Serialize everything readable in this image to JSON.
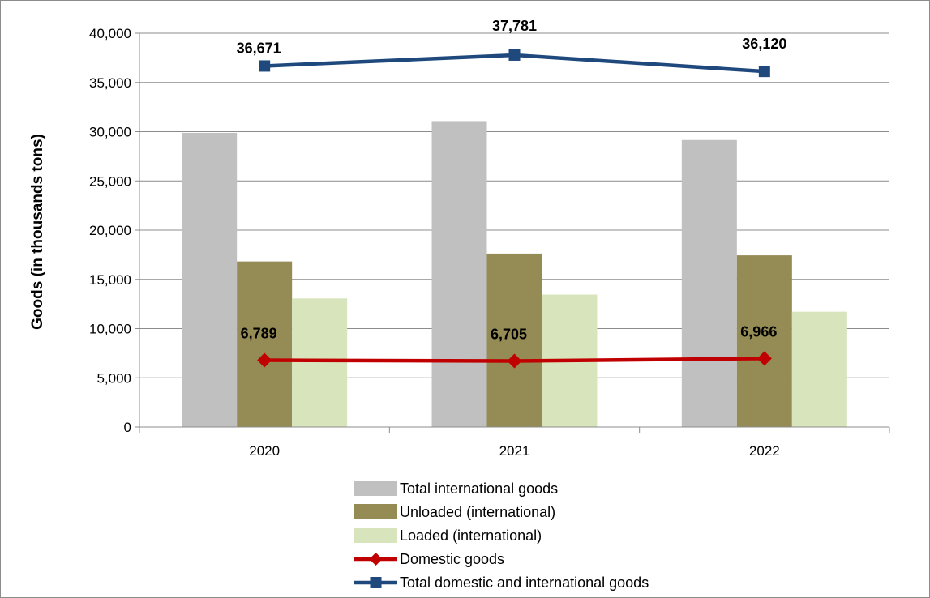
{
  "chart_data": {
    "type": "bar",
    "categories": [
      "2020",
      "2021",
      "2022"
    ],
    "ylabel": "Goods (in thousands tons)",
    "ylim": [
      0,
      40000
    ],
    "yticks": [
      0,
      5000,
      10000,
      15000,
      20000,
      25000,
      30000,
      35000,
      40000
    ],
    "ytick_labels": [
      "0",
      "5,000",
      "10,000",
      "15,000",
      "20,000",
      "25,000",
      "30,000",
      "35,000",
      "40,000"
    ],
    "grid": true,
    "legend_position": "bottom",
    "series": [
      {
        "name": "Total international goods",
        "kind": "bar",
        "color": "#c0c0c0",
        "values": [
          29882,
          31076,
          29154
        ]
      },
      {
        "name": "Unloaded (international)",
        "kind": "bar",
        "color": "#958b55",
        "values": [
          16820,
          17620,
          17440
        ]
      },
      {
        "name": "Loaded (international)",
        "kind": "bar",
        "color": "#d8e4bc",
        "values": [
          13062,
          13456,
          11714
        ]
      },
      {
        "name": "Domestic goods",
        "kind": "line",
        "marker": "diamond",
        "color": "#c00000",
        "values": [
          6789,
          6705,
          6966
        ],
        "labels": [
          "6,789",
          "6,705",
          "6,966"
        ]
      },
      {
        "name": "Total domestic and international goods",
        "kind": "line",
        "marker": "square",
        "color": "#1f497d",
        "values": [
          36671,
          37781,
          36120
        ],
        "labels": [
          "36,671",
          "37,781",
          "36,120"
        ]
      }
    ]
  }
}
